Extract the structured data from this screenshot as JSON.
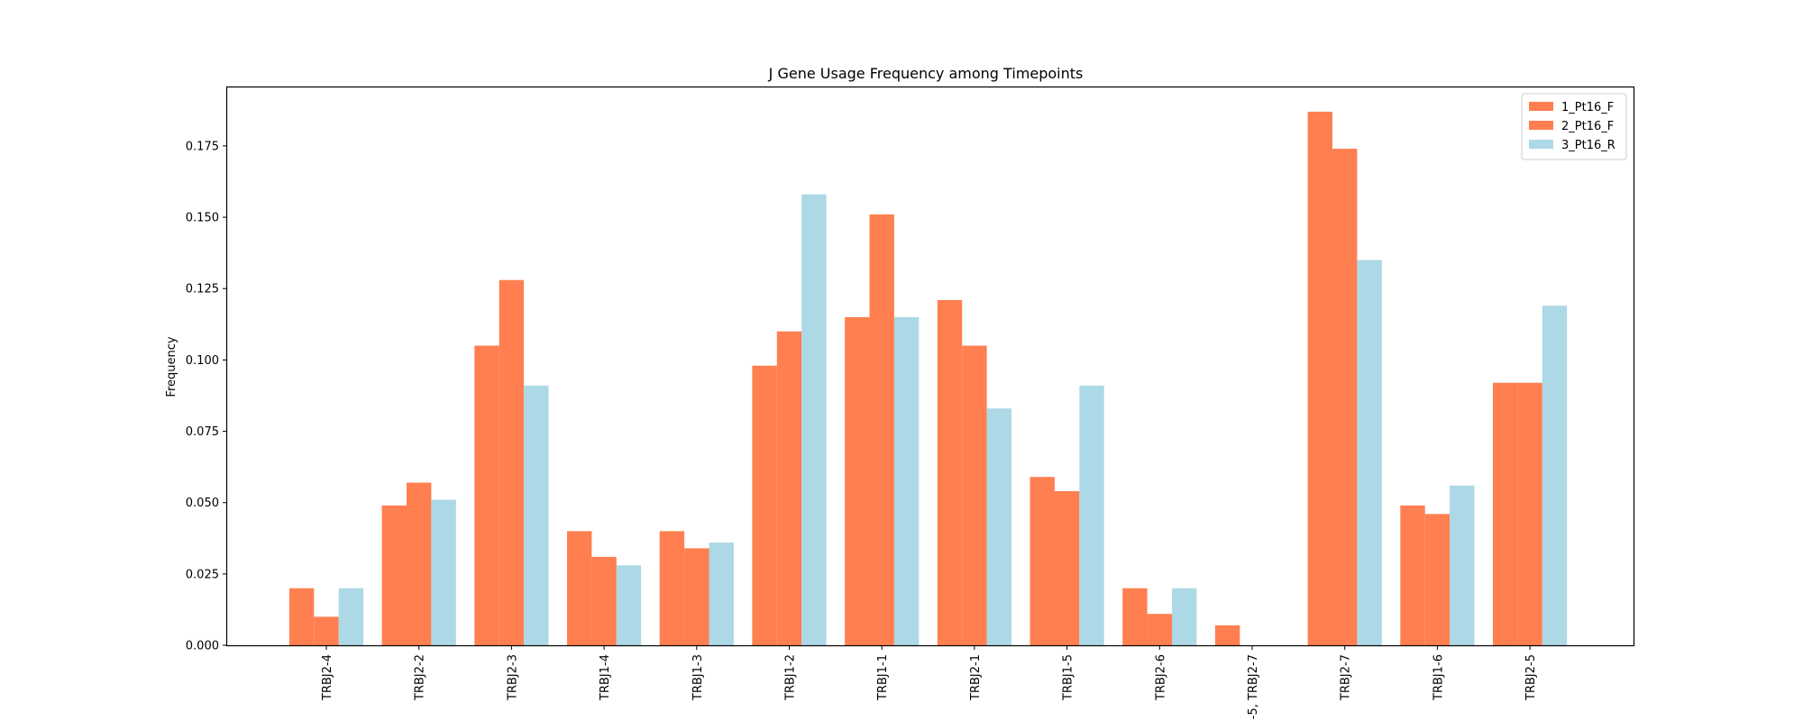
{
  "chart_data": {
    "type": "bar",
    "title": "J Gene Usage Frequency among Timepoints",
    "xlabel": "",
    "ylabel": "Frequency",
    "ylim": [
      0,
      0.1955
    ],
    "yticks": [
      "0.000",
      "0.025",
      "0.050",
      "0.075",
      "0.100",
      "0.125",
      "0.150",
      "0.175"
    ],
    "ytick_values": [
      0,
      0.025,
      0.05,
      0.075,
      0.1,
      0.125,
      0.15,
      0.175
    ],
    "categories": [
      "TRBJ2-4",
      "TRBJ2-2",
      "TRBJ2-3",
      "TRBJ1-4",
      "TRBJ1-3",
      "TRBJ1-2",
      "TRBJ1-1",
      "TRBJ2-1",
      "TRBJ1-5",
      "TRBJ2-6",
      "-5, TRBJ2-7",
      "TRBJ2-7",
      "TRBJ1-6",
      "TRBJ2-5"
    ],
    "series": [
      {
        "name": "1_Pt16_F",
        "color": "#ff7f50",
        "values": [
          0.02,
          0.049,
          0.105,
          0.04,
          0.04,
          0.098,
          0.115,
          0.121,
          0.059,
          0.02,
          0.007,
          0.187,
          0.049,
          0.092
        ]
      },
      {
        "name": "2_Pt16_F",
        "color": "#ff7f50",
        "values": [
          0.01,
          0.057,
          0.128,
          0.031,
          0.034,
          0.11,
          0.151,
          0.105,
          0.054,
          0.011,
          0.0,
          0.174,
          0.046,
          0.092
        ]
      },
      {
        "name": "3_Pt16_R",
        "color": "#add8e6",
        "values": [
          0.02,
          0.051,
          0.091,
          0.028,
          0.036,
          0.158,
          0.115,
          0.083,
          0.091,
          0.02,
          0.0,
          0.135,
          0.056,
          0.119
        ]
      }
    ],
    "grid": false,
    "legend_position": "top-right"
  }
}
